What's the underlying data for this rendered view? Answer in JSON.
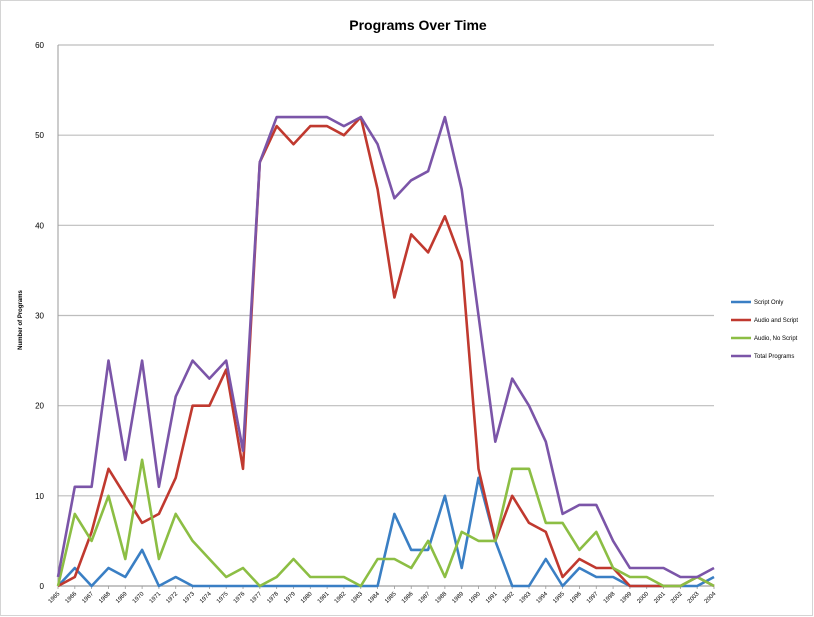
{
  "chart_data": {
    "type": "line",
    "title": "Programs Over Time",
    "xlabel": "",
    "ylabel": "Number of Programs",
    "ylim": [
      0,
      60
    ],
    "yticks": [
      0,
      10,
      20,
      30,
      40,
      50,
      60
    ],
    "grid": "horizontal",
    "legend_position": "right",
    "x": [
      "1965",
      "1966",
      "1967",
      "1968",
      "1969",
      "1970",
      "1971",
      "1972",
      "1973",
      "1974",
      "1975",
      "1976",
      "1977",
      "1978",
      "1979",
      "1980",
      "1981",
      "1982",
      "1983",
      "1984",
      "1985",
      "1986",
      "1987",
      "1988",
      "1989",
      "1990",
      "1991",
      "1992",
      "1993",
      "1994",
      "1995",
      "1996",
      "1997",
      "1998",
      "1999",
      "2000",
      "2001",
      "2002",
      "2003",
      "2004"
    ],
    "series": [
      {
        "name": "Script Only",
        "color": "#3a7fc4",
        "values": [
          0,
          2,
          0,
          2,
          1,
          4,
          0,
          1,
          0,
          0,
          0,
          0,
          0,
          0,
          0,
          0,
          0,
          0,
          0,
          0,
          8,
          4,
          4,
          10,
          2,
          12,
          5,
          0,
          0,
          3,
          0,
          2,
          1,
          1,
          0,
          0,
          0,
          0,
          0,
          1
        ]
      },
      {
        "name": "Audio and Script",
        "color": "#c0392f",
        "values": [
          0,
          1,
          6,
          13,
          10,
          7,
          8,
          12,
          20,
          20,
          24,
          13,
          47,
          51,
          49,
          51,
          51,
          50,
          52,
          44,
          32,
          39,
          37,
          41,
          36,
          13,
          5,
          10,
          7,
          6,
          1,
          3,
          2,
          2,
          0,
          0,
          0,
          0,
          1,
          0
        ]
      },
      {
        "name": "Audio, No Script",
        "color": "#8cbe44",
        "values": [
          0,
          8,
          5,
          10,
          3,
          14,
          3,
          8,
          5,
          3,
          1,
          2,
          0,
          1,
          3,
          1,
          1,
          1,
          0,
          3,
          3,
          2,
          5,
          1,
          6,
          5,
          5,
          13,
          13,
          7,
          7,
          4,
          6,
          2,
          1,
          1,
          0,
          0,
          1,
          0
        ]
      },
      {
        "name": "Total Programs",
        "color": "#7b55a8",
        "values": [
          1,
          11,
          11,
          25,
          14,
          25,
          11,
          21,
          25,
          23,
          25,
          15,
          47,
          52,
          52,
          52,
          52,
          51,
          52,
          49,
          43,
          45,
          46,
          52,
          44,
          30,
          16,
          23,
          20,
          16,
          8,
          9,
          9,
          5,
          2,
          2,
          2,
          1,
          1,
          2
        ]
      }
    ]
  }
}
